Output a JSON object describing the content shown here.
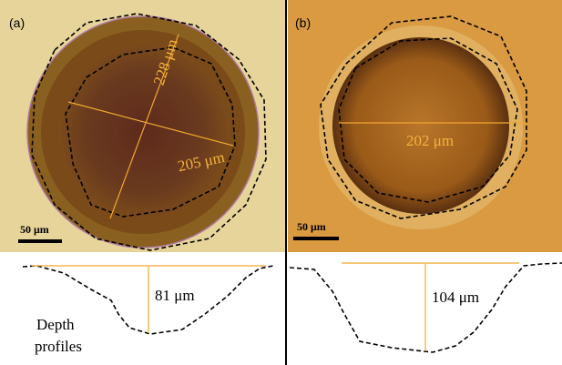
{
  "panels": [
    {
      "label": "(a)",
      "measurements": [
        "228 μm",
        "205 μm"
      ],
      "scale_bar": "50 μm",
      "depth": "81 μm"
    },
    {
      "label": "(b)",
      "measurements": [
        "202 μm"
      ],
      "scale_bar": "50 μm",
      "depth": "104 μm"
    }
  ],
  "depth_label_lines": [
    "Depth",
    "profiles"
  ]
}
